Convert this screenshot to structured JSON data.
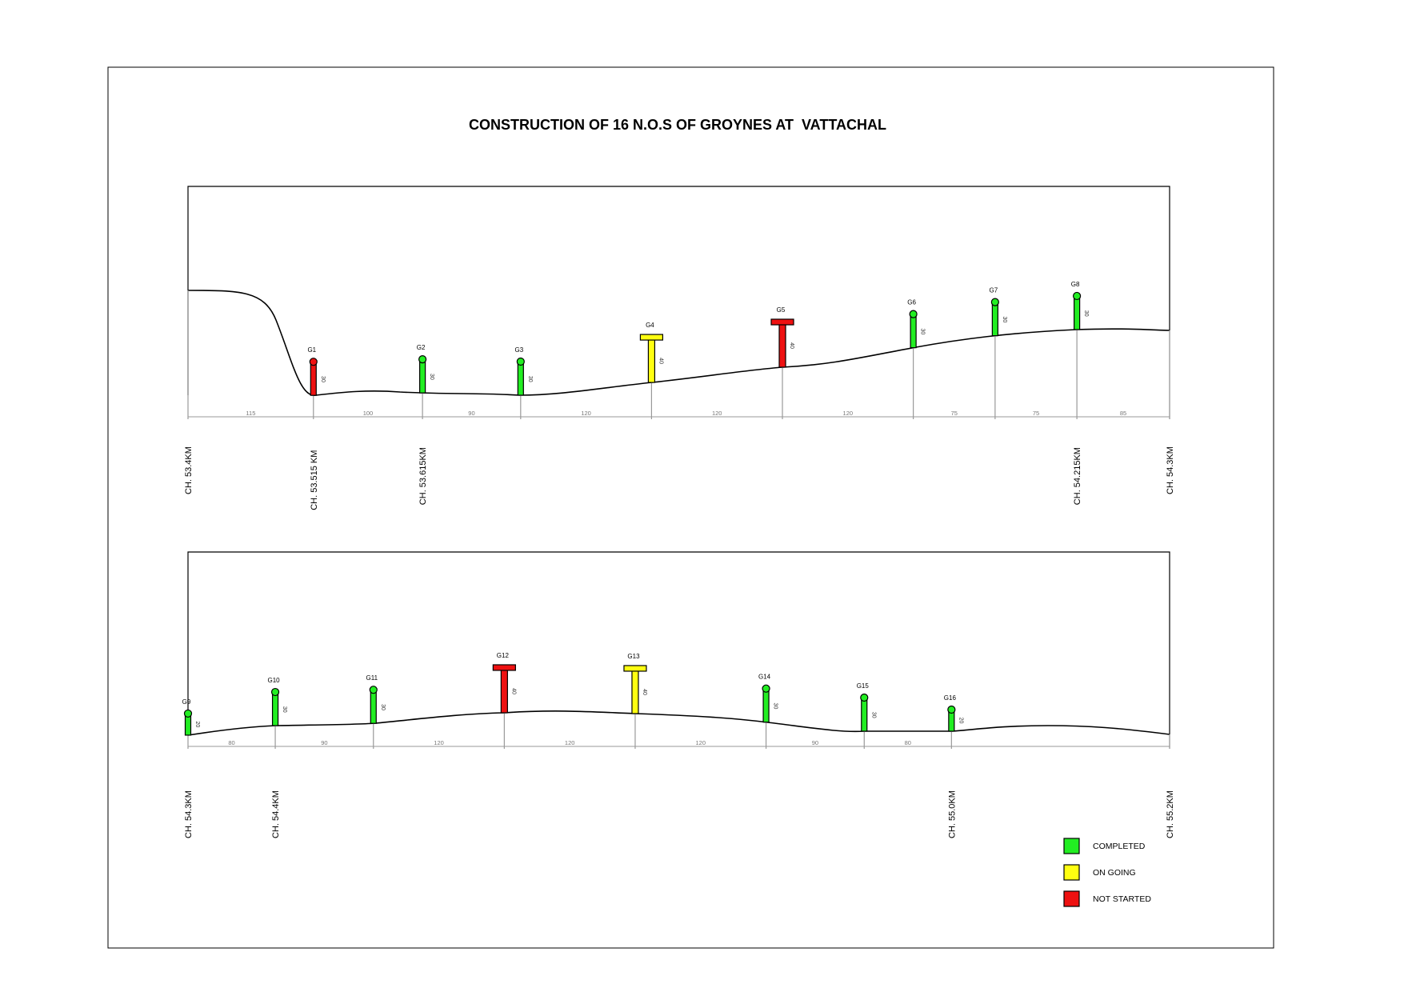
{
  "title": "CONSTRUCTION OF 16 N.O.S OF GROYNES AT  VATTACHAL",
  "colors": {
    "completed": "#22ee22",
    "ongoing": "#ffff11",
    "not_started": "#ee1111",
    "line": "#000000",
    "ticks": "#999999"
  },
  "legend": [
    {
      "status": "completed",
      "label": "COMPLETED"
    },
    {
      "status": "ongoing",
      "label": "ON GOING"
    },
    {
      "status": "not_started",
      "label": "NOT STARTED"
    }
  ],
  "panels": [
    {
      "start_chainage_km": 53.4,
      "end_chainage_km": 54.3,
      "chainage_labels": [
        {
          "offset_m": 0,
          "text": "CH. 53.4KM"
        },
        {
          "offset_m": 115,
          "text": "CH. 53.515 KM"
        },
        {
          "offset_m": 215,
          "text": "CH. 53.615KM"
        },
        {
          "offset_m": 815,
          "text": "CH. 54.215KM"
        },
        {
          "offset_m": 900,
          "text": "CH. 54.3KM"
        }
      ],
      "distances": [
        "115",
        "100",
        "90",
        "120",
        "120",
        "120",
        "75",
        "75",
        "85"
      ],
      "groynes": [
        {
          "name": "G1",
          "offset_m": 115,
          "length": "30",
          "status": "not_started",
          "shape": "round"
        },
        {
          "name": "G2",
          "offset_m": 215,
          "length": "30",
          "status": "completed",
          "shape": "round"
        },
        {
          "name": "G3",
          "offset_m": 305,
          "length": "30",
          "status": "completed",
          "shape": "round"
        },
        {
          "name": "G4",
          "offset_m": 425,
          "length": "40",
          "status": "ongoing",
          "shape": "tee"
        },
        {
          "name": "G5",
          "offset_m": 545,
          "length": "40",
          "status": "not_started",
          "shape": "tee"
        },
        {
          "name": "G6",
          "offset_m": 665,
          "length": "30",
          "status": "completed",
          "shape": "round"
        },
        {
          "name": "G7",
          "offset_m": 740,
          "length": "30",
          "status": "completed",
          "shape": "round"
        },
        {
          "name": "G8",
          "offset_m": 815,
          "length": "30",
          "status": "completed",
          "shape": "round"
        }
      ]
    },
    {
      "start_chainage_km": 54.3,
      "end_chainage_km": 55.2,
      "chainage_labels": [
        {
          "offset_m": 0,
          "text": "CH. 54.3KM"
        },
        {
          "offset_m": 80,
          "text": "CH. 54.4KM"
        },
        {
          "offset_m": 700,
          "text": "CH. 55.0KM"
        },
        {
          "offset_m": 900,
          "text": "CH. 55.2KM"
        }
      ],
      "distances": [
        "80",
        "90",
        "120",
        "120",
        "120",
        "90",
        "80"
      ],
      "groynes": [
        {
          "name": "G9",
          "offset_m": 0,
          "length": "20",
          "status": "completed",
          "shape": "round"
        },
        {
          "name": "G10",
          "offset_m": 80,
          "length": "30",
          "status": "completed",
          "shape": "round"
        },
        {
          "name": "G11",
          "offset_m": 170,
          "length": "30",
          "status": "completed",
          "shape": "round"
        },
        {
          "name": "G12",
          "offset_m": 290,
          "length": "40",
          "status": "not_started",
          "shape": "tee"
        },
        {
          "name": "G13",
          "offset_m": 410,
          "length": "40",
          "status": "ongoing",
          "shape": "tee"
        },
        {
          "name": "G14",
          "offset_m": 530,
          "length": "30",
          "status": "completed",
          "shape": "round"
        },
        {
          "name": "G15",
          "offset_m": 620,
          "length": "30",
          "status": "completed",
          "shape": "round"
        },
        {
          "name": "G16",
          "offset_m": 700,
          "length": "20",
          "status": "completed",
          "shape": "round"
        }
      ]
    }
  ]
}
